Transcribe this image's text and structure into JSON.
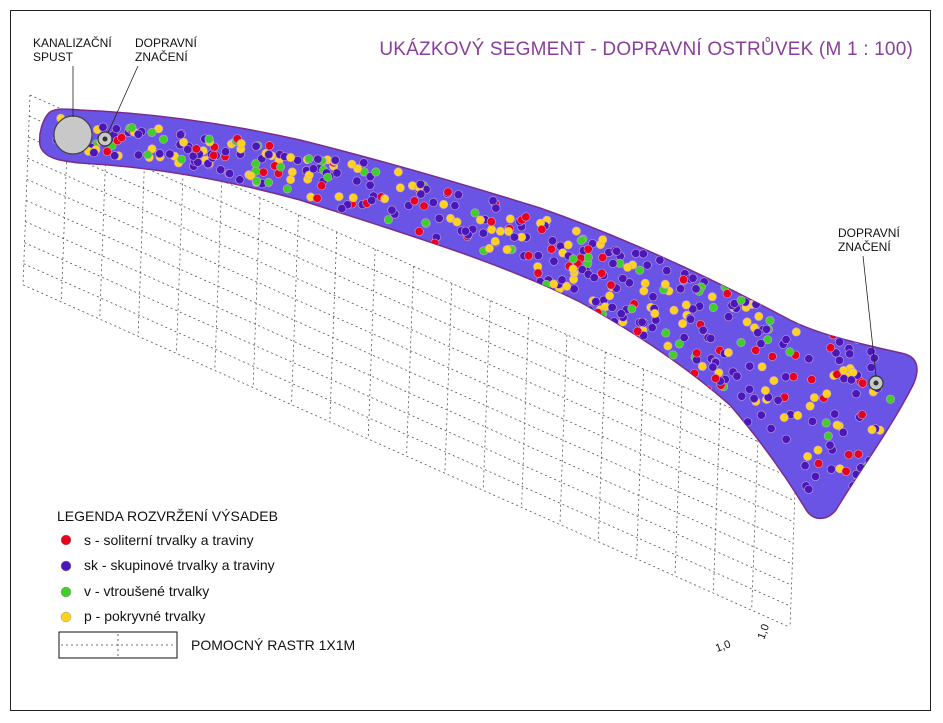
{
  "title": "UKÁZKOVÝ SEGMENT - DOPRAVNÍ OSTRŮVEK (M 1 : 100)",
  "callouts": {
    "drain_line1": "KANALIZAČNÍ",
    "drain_line2": "SPUST",
    "sign_left_line1": "DOPRAVNÍ",
    "sign_left_line2": "ZNAČENÍ",
    "sign_right_line1": "DOPRAVNÍ",
    "sign_right_line2": "ZNAČENÍ"
  },
  "colors": {
    "island_fill": "#6a54e6",
    "island_stroke": "#7a2c8c",
    "solitary": "#e8001c",
    "group": "#4a18b8",
    "scattered": "#3fcf28",
    "groundcover": "#ffd21e",
    "title": "#8a3e9c"
  },
  "legend": {
    "title": "LEGENDA ROZVRŽENÍ VÝSADEB",
    "items": [
      {
        "key": "solitary",
        "label": "s - soliterní trvalky a traviny"
      },
      {
        "key": "group",
        "label": "sk - skupinové trvalky a traviny"
      },
      {
        "key": "scattered",
        "label": "v - vtroušené trvalky"
      },
      {
        "key": "groundcover",
        "label": "p - pokryvné trvalky"
      }
    ],
    "grid_label": "POMOCNÝ RASTR 1X1M"
  },
  "scale": {
    "label_a": "1,0",
    "label_b": "1,0"
  }
}
